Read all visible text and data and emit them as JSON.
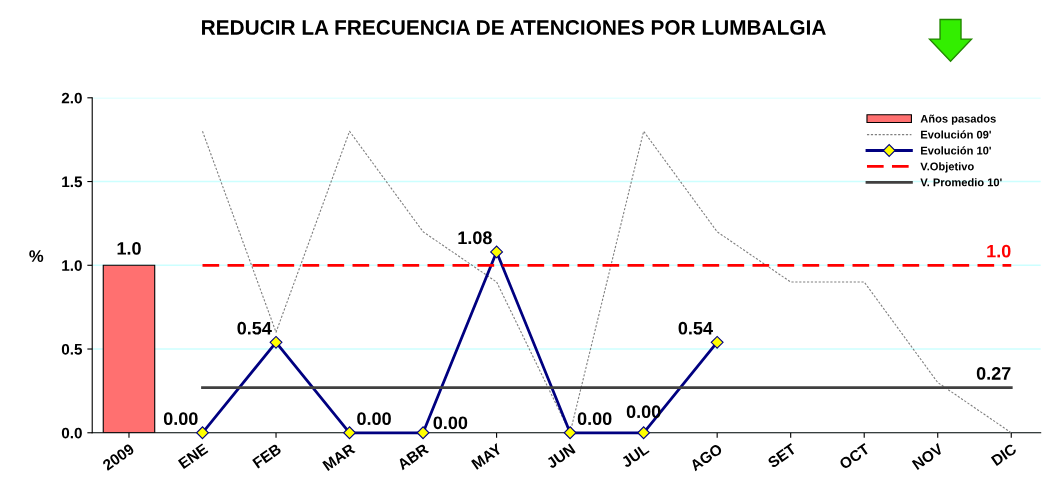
{
  "chart_data": {
    "type": "line",
    "title": "REDUCIR LA FRECUENCIA DE ATENCIONES POR LUMBALGIA",
    "ylabel": "%",
    "categories": [
      "2009",
      "ENE",
      "FEB",
      "MAR",
      "ABR",
      "MAY",
      "JUN",
      "JUL",
      "AGO",
      "SET",
      "OCT",
      "NOV",
      "DIC"
    ],
    "ylim": [
      0,
      2.0
    ],
    "yticks": [
      {
        "value": 0,
        "label": "0.0"
      },
      {
        "value": 0.5,
        "label": "0.5"
      },
      {
        "value": 1.0,
        "label": "1.0"
      },
      {
        "value": 1.5,
        "label": "1.5"
      },
      {
        "value": 2.0,
        "label": "2.0"
      }
    ],
    "grid": "y",
    "legend": "top right",
    "series": [
      {
        "name": "Años pasados",
        "type": "bar",
        "color": "#ff7070",
        "values": [
          1.0,
          null,
          null,
          null,
          null,
          null,
          null,
          null,
          null,
          null,
          null,
          null,
          null
        ],
        "value_labels": [
          "1.0",
          null,
          null,
          null,
          null,
          null,
          null,
          null,
          null,
          null,
          null,
          null,
          null
        ]
      },
      {
        "name": "Evolución 09'",
        "color": "#808080",
        "line_style": "dotted",
        "marker": "none",
        "values": [
          null,
          1.8,
          0.6,
          1.8,
          1.2,
          0.9,
          0.0,
          1.8,
          1.2,
          0.9,
          0.9,
          0.3,
          0.0
        ]
      },
      {
        "name": "Evolución 10'",
        "color": "#000080",
        "line_style": "solid",
        "marker": "diamond",
        "values": [
          null,
          0,
          0.54,
          0,
          0,
          1.08,
          0,
          0,
          0.54,
          null,
          null,
          null,
          null
        ],
        "value_labels": [
          null,
          "0.00",
          "0.54",
          "0.00",
          "0.00",
          "1.08",
          "0.00",
          "0.00",
          "0.54",
          null,
          null,
          null,
          null
        ]
      },
      {
        "name": "V.Objetivo",
        "color": "#ff0000",
        "line_style": "dashed",
        "marker": "none",
        "values": [
          null,
          1.0,
          1.0,
          1.0,
          1.0,
          1.0,
          1.0,
          1.0,
          1.0,
          1.0,
          1.0,
          1.0,
          1.0
        ],
        "value_labels": [
          null,
          null,
          null,
          null,
          null,
          null,
          null,
          null,
          null,
          null,
          null,
          null,
          "1.0"
        ]
      },
      {
        "name": "V. Promedio 10'",
        "color": "#404040",
        "line_style": "solid",
        "marker": "none",
        "values": [
          null,
          0.27,
          0.27,
          0.27,
          0.27,
          0.27,
          0.27,
          0.27,
          0.27,
          0.27,
          0.27,
          0.27,
          0.27
        ],
        "value_labels": [
          null,
          null,
          null,
          null,
          null,
          null,
          null,
          null,
          null,
          null,
          null,
          null,
          "0.27"
        ]
      }
    ]
  }
}
